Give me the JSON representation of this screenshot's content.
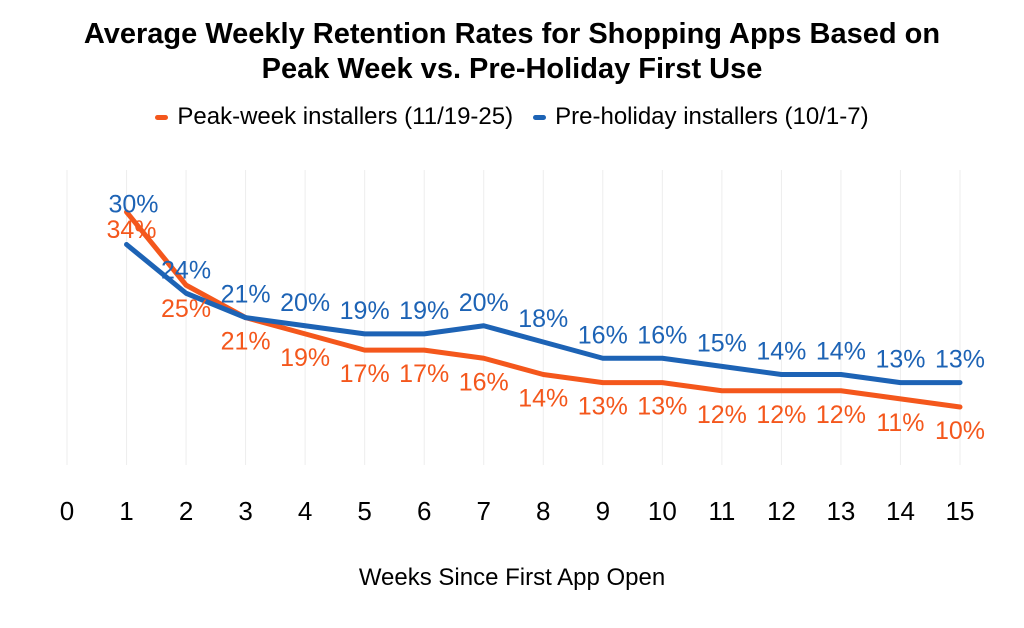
{
  "title": {
    "lines": [
      "Average Weekly Retention Rates for Shopping Apps Based on",
      "Peak Week vs. Pre-Holiday First Use"
    ]
  },
  "legend": [
    {
      "label": "Peak-week installers (11/19-25)",
      "color": "#F4571C"
    },
    {
      "label": "Pre-holiday installers (10/1-7)",
      "color": "#1D63B5"
    }
  ],
  "x_axis": {
    "title": "Weeks Since First App Open"
  },
  "colors": {
    "orange_series": "#F4571C",
    "blue_series": "#1D63B5",
    "gridline": "#ededed",
    "text": "#000000",
    "background": "#ffffff"
  },
  "chart_data": {
    "type": "line",
    "title": "Average Weekly Retention Rates for Shopping Apps Based on Peak Week vs. Pre-Holiday First Use",
    "xlabel": "Weeks Since First App Open",
    "ylabel": "",
    "x": [
      1,
      2,
      3,
      4,
      5,
      6,
      7,
      8,
      9,
      10,
      11,
      12,
      13,
      14,
      15
    ],
    "x_ticks": [
      0,
      1,
      2,
      3,
      4,
      5,
      6,
      7,
      8,
      9,
      10,
      11,
      12,
      13,
      14,
      15
    ],
    "xlim": [
      0,
      15
    ],
    "label_suffix": "%",
    "grid": "vertical-faint",
    "legend_position": "top",
    "data_labels": true,
    "series": [
      {
        "name": "Peak-week installers (11/19-25)",
        "color": "#F4571C",
        "label_position": "below",
        "values": [
          34,
          25,
          21,
          19,
          17,
          17,
          16,
          14,
          13,
          13,
          12,
          12,
          12,
          11,
          10
        ]
      },
      {
        "name": "Pre-holiday installers (10/1-7)",
        "color": "#1D63B5",
        "label_position": "above",
        "values": [
          30,
          24,
          21,
          20,
          19,
          19,
          20,
          18,
          16,
          16,
          15,
          14,
          14,
          13,
          13
        ]
      }
    ]
  }
}
